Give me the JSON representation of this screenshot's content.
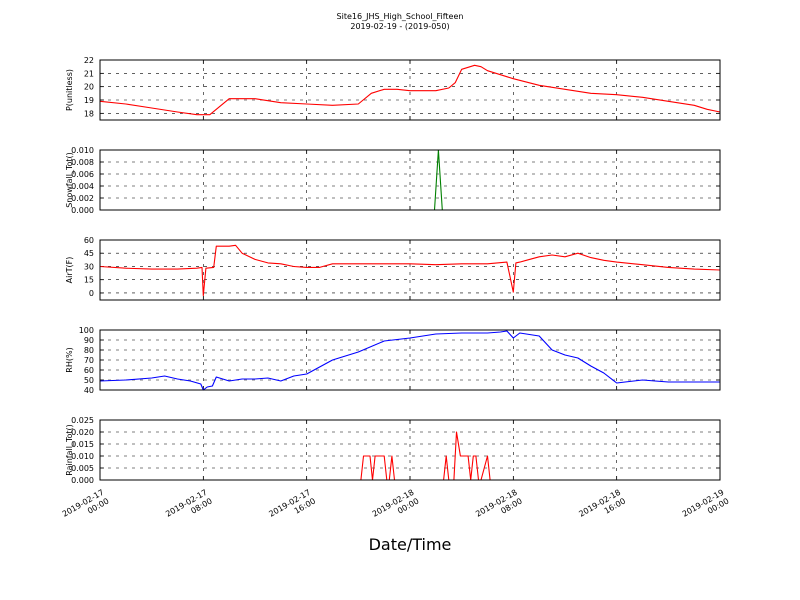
{
  "title": "Site16_JHS_High_School_Fifteen",
  "subtitle": "2019-02-19 - (2019-050)",
  "xlabel": "Date/Time",
  "xtick_labels": [
    [
      "2019-02-17",
      "00:00"
    ],
    [
      "2019-02-17",
      "08:00"
    ],
    [
      "2019-02-17",
      "16:00"
    ],
    [
      "2019-02-18",
      "00:00"
    ],
    [
      "2019-02-18",
      "08:00"
    ],
    [
      "2019-02-18",
      "16:00"
    ],
    [
      "2019-02-19",
      "00:00"
    ]
  ],
  "chart_data": [
    {
      "type": "line",
      "ylabel": "P(unitless)",
      "ylim": [
        17.5,
        22
      ],
      "yticks": [
        "18",
        "19",
        "20",
        "21",
        "22"
      ],
      "ytick_values": [
        18,
        19,
        20,
        21,
        22
      ],
      "color": "#ff0000",
      "x_hours": [
        0,
        2,
        4,
        6,
        7.5,
        8.5,
        9,
        10,
        12,
        14,
        16,
        18,
        20,
        21,
        22,
        23,
        24,
        26,
        27,
        27.5,
        28,
        29,
        29.5,
        30,
        31,
        32,
        34,
        36,
        38,
        40,
        42,
        44,
        46,
        47,
        48
      ],
      "values": [
        18.9,
        18.7,
        18.4,
        18.1,
        17.9,
        17.9,
        18.3,
        19.1,
        19.1,
        18.8,
        18.7,
        18.6,
        18.7,
        19.5,
        19.8,
        19.8,
        19.7,
        19.7,
        19.9,
        20.3,
        21.3,
        21.6,
        21.5,
        21.2,
        20.9,
        20.6,
        20.1,
        19.8,
        19.5,
        19.4,
        19.2,
        18.9,
        18.6,
        18.3,
        18.1
      ]
    },
    {
      "type": "line",
      "ylabel": "Snowfall_Tot()",
      "ylim": [
        0,
        0.01
      ],
      "yticks": [
        "0.000",
        "0.002",
        "0.004",
        "0.006",
        "0.008",
        "0.010"
      ],
      "ytick_values": [
        0,
        0.002,
        0.004,
        0.006,
        0.008,
        0.01
      ],
      "color": "#008000",
      "x_hours": [
        0,
        25.9,
        26.2,
        26.5,
        48
      ],
      "values": [
        0,
        0,
        0.01,
        0,
        0
      ]
    },
    {
      "type": "line",
      "ylabel": "AirT(F)",
      "ylim": [
        -8,
        60
      ],
      "yticks": [
        "0",
        "15",
        "30",
        "45",
        "60"
      ],
      "ytick_values": [
        0,
        15,
        30,
        45,
        60
      ],
      "color": "#ff0000",
      "x_hours": [
        0,
        2,
        4,
        6,
        7.5,
        7.9,
        8.0,
        8.2,
        8.8,
        9.0,
        10,
        10.5,
        11,
        12,
        13,
        14,
        15,
        16,
        17,
        18,
        20,
        24,
        26,
        28,
        30,
        31.5,
        32,
        32.2,
        32.5,
        33,
        34,
        35,
        36,
        37,
        38,
        39,
        40,
        42,
        44,
        46,
        48
      ],
      "values": [
        30,
        28,
        27,
        27,
        28,
        29,
        -3,
        28,
        29,
        53,
        53,
        54,
        45,
        38,
        34,
        33,
        30,
        29,
        29,
        33,
        33,
        33,
        32,
        33,
        33,
        35,
        1,
        34,
        35,
        37,
        41,
        43,
        41,
        45,
        40,
        37,
        35,
        32,
        29,
        27,
        26
      ]
    },
    {
      "type": "line",
      "ylabel": "RH(%)",
      "ylim": [
        40,
        100
      ],
      "yticks": [
        "40",
        "50",
        "60",
        "70",
        "80",
        "90",
        "100"
      ],
      "ytick_values": [
        40,
        50,
        60,
        70,
        80,
        90,
        100
      ],
      "color": "#0000ff",
      "x_hours": [
        0,
        2,
        4,
        5,
        6,
        7,
        7.8,
        8.0,
        8.3,
        8.7,
        9.0,
        10,
        11,
        12,
        13,
        14,
        15,
        16,
        17,
        18,
        20,
        22,
        24,
        25,
        26,
        28,
        30,
        31,
        31.5,
        32,
        32.5,
        33,
        33.5,
        34,
        35,
        36,
        37,
        38,
        39,
        40,
        42,
        44,
        46,
        48
      ],
      "values": [
        49,
        50,
        52,
        54,
        51,
        49,
        46,
        40,
        43,
        44,
        53,
        49,
        51,
        51,
        52,
        49,
        54,
        56,
        63,
        70,
        78,
        89,
        92,
        94,
        96,
        97,
        97,
        98,
        99,
        92,
        97,
        96,
        95,
        94,
        80,
        75,
        72,
        64,
        57,
        47,
        50,
        48,
        48,
        48
      ]
    },
    {
      "type": "line",
      "ylabel": "Rainfall_Tot()",
      "ylim": [
        0,
        0.025
      ],
      "yticks": [
        "0.000",
        "0.005",
        "0.010",
        "0.015",
        "0.020",
        "0.025"
      ],
      "ytick_values": [
        0,
        0.005,
        0.01,
        0.015,
        0.02,
        0.025
      ],
      "color": "#ff0000",
      "x_hours": [
        0,
        20.2,
        20.4,
        20.9,
        21.1,
        21.3,
        21.5,
        22.0,
        22.2,
        22.4,
        22.6,
        22.8,
        23.0,
        26.6,
        26.8,
        27.0,
        27.4,
        27.6,
        27.9,
        28.5,
        28.7,
        28.9,
        29.1,
        29.3,
        29.5,
        30.0,
        30.2,
        30.4,
        48
      ],
      "values": [
        0,
        0,
        0.01,
        0.01,
        0,
        0.01,
        0.01,
        0.01,
        0,
        0,
        0.01,
        0,
        0,
        0,
        0.01,
        0,
        0,
        0.02,
        0.01,
        0.01,
        0,
        0.01,
        0.01,
        0,
        0,
        0.01,
        0,
        0,
        0
      ]
    }
  ]
}
